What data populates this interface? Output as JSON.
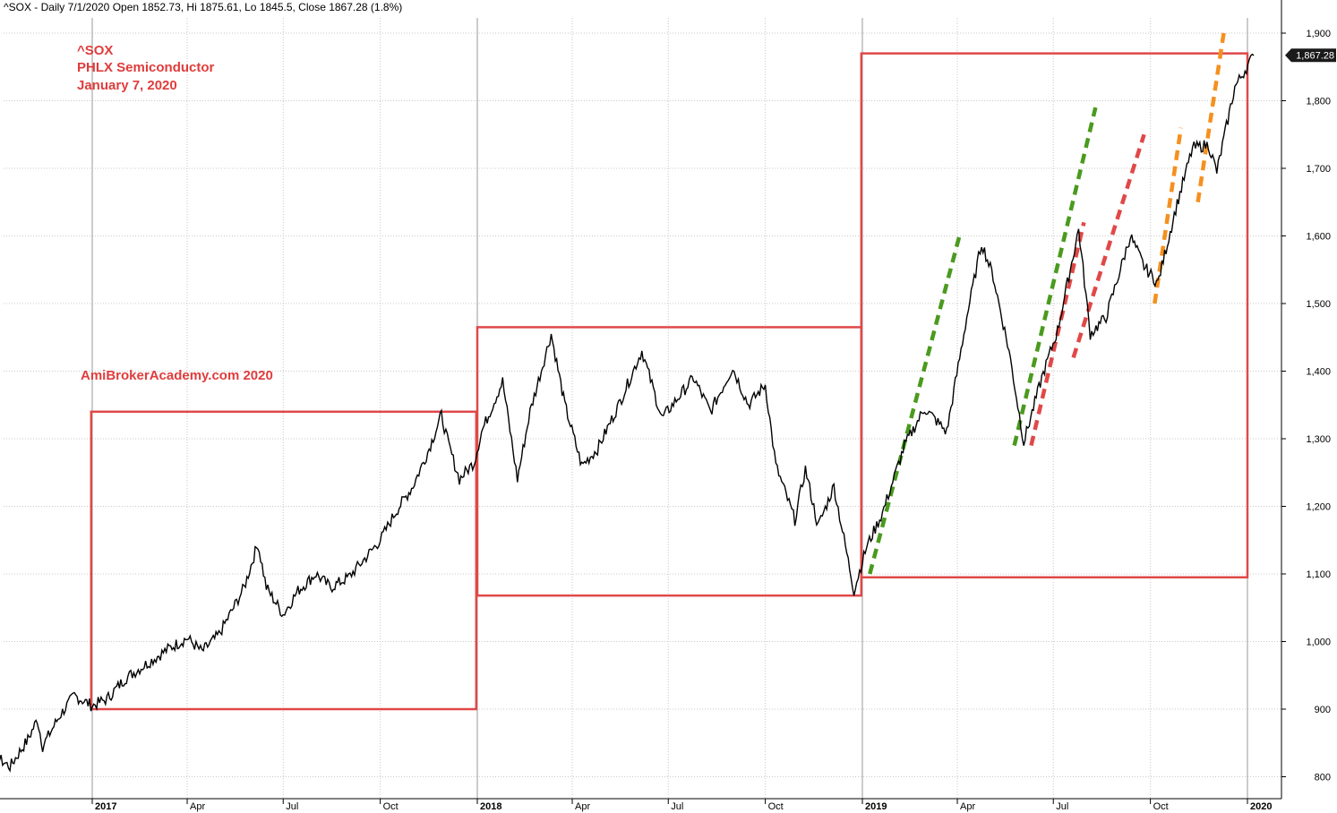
{
  "header": {
    "ohlc_text": "^SOX - Daily 7/1/2020 Open 1852.73, Hi 1875.61, Lo 1845.5, Close 1867.28 (1.8%)"
  },
  "annotations": {
    "symbol": "^SOX",
    "name": "PHLX Semiconductor",
    "date": "January 7, 2020",
    "watermark": "AmiBrokerAcademy.com 2020"
  },
  "colors": {
    "price": "#000000",
    "box": "#e04848",
    "green_trend": "#4a9a1e",
    "red_trend": "#e04848",
    "orange_trend": "#f5901e",
    "grid": "#c8c8c8",
    "price_tag_bg": "#1a1a1a"
  },
  "chart_data": {
    "type": "line",
    "title": "^SOX",
    "y_axis_position": "right",
    "ylim": [
      780,
      1910
    ],
    "yticks": [
      {
        "value": 800,
        "label": "800"
      },
      {
        "value": 900,
        "label": "900"
      },
      {
        "value": 1000,
        "label": "1,000"
      },
      {
        "value": 1100,
        "label": "1,100"
      },
      {
        "value": 1200,
        "label": "1,200"
      },
      {
        "value": 1300,
        "label": "1,300"
      },
      {
        "value": 1400,
        "label": "1,400"
      },
      {
        "value": 1500,
        "label": "1,500"
      },
      {
        "value": 1600,
        "label": "1,600"
      },
      {
        "value": 1700,
        "label": "1,700"
      },
      {
        "value": 1800,
        "label": "1,800"
      },
      {
        "value": 1900,
        "label": "1,900"
      }
    ],
    "xlim": [
      "2016-09-01",
      "2020-02-15"
    ],
    "xticks": [
      {
        "date": "2017-01-01",
        "label": "2017",
        "year": true
      },
      {
        "date": "2017-04-01",
        "label": "Apr",
        "year": false
      },
      {
        "date": "2017-07-01",
        "label": "Jul",
        "year": false
      },
      {
        "date": "2017-10-01",
        "label": "Oct",
        "year": false
      },
      {
        "date": "2018-01-01",
        "label": "2018",
        "year": true
      },
      {
        "date": "2018-04-01",
        "label": "Apr",
        "year": false
      },
      {
        "date": "2018-07-01",
        "label": "Jul",
        "year": false
      },
      {
        "date": "2018-10-01",
        "label": "Oct",
        "year": false
      },
      {
        "date": "2019-01-01",
        "label": "2019",
        "year": true
      },
      {
        "date": "2019-04-01",
        "label": "Apr",
        "year": false
      },
      {
        "date": "2019-07-01",
        "label": "Jul",
        "year": false
      },
      {
        "date": "2019-10-01",
        "label": "Oct",
        "year": false
      },
      {
        "date": "2020-01-01",
        "label": "2020",
        "year": true
      }
    ],
    "last_value": 1867.28,
    "last_value_label": "1,867.28",
    "series": [
      {
        "points": [
          [
            "2016-09-01",
            820
          ],
          [
            "2016-09-15",
            805
          ],
          [
            "2016-10-01",
            830
          ],
          [
            "2016-10-15",
            815
          ],
          [
            "2016-11-01",
            855
          ],
          [
            "2016-11-10",
            885
          ],
          [
            "2016-11-15",
            845
          ],
          [
            "2016-12-01",
            890
          ],
          [
            "2016-12-15",
            920
          ],
          [
            "2017-01-01",
            905
          ],
          [
            "2017-01-15",
            915
          ],
          [
            "2017-02-01",
            945
          ],
          [
            "2017-02-15",
            960
          ],
          [
            "2017-03-01",
            975
          ],
          [
            "2017-03-15",
            990
          ],
          [
            "2017-04-01",
            1005
          ],
          [
            "2017-04-15",
            985
          ],
          [
            "2017-05-01",
            1010
          ],
          [
            "2017-05-15",
            1050
          ],
          [
            "2017-05-25",
            1080
          ],
          [
            "2017-06-07",
            1145
          ],
          [
            "2017-06-15",
            1080
          ],
          [
            "2017-07-01",
            1040
          ],
          [
            "2017-07-15",
            1075
          ],
          [
            "2017-08-01",
            1100
          ],
          [
            "2017-08-15",
            1080
          ],
          [
            "2017-09-01",
            1095
          ],
          [
            "2017-09-15",
            1120
          ],
          [
            "2017-10-01",
            1150
          ],
          [
            "2017-10-15",
            1190
          ],
          [
            "2017-11-01",
            1230
          ],
          [
            "2017-11-15",
            1280
          ],
          [
            "2017-11-28",
            1335
          ],
          [
            "2017-12-05",
            1290
          ],
          [
            "2017-12-15",
            1240
          ],
          [
            "2017-12-29",
            1265
          ],
          [
            "2018-01-05",
            1310
          ],
          [
            "2018-01-25",
            1385
          ],
          [
            "2018-02-08",
            1240
          ],
          [
            "2018-02-20",
            1340
          ],
          [
            "2018-03-12",
            1455
          ],
          [
            "2018-03-25",
            1350
          ],
          [
            "2018-04-10",
            1260
          ],
          [
            "2018-04-25",
            1285
          ],
          [
            "2018-05-15",
            1350
          ],
          [
            "2018-06-06",
            1430
          ],
          [
            "2018-06-25",
            1330
          ],
          [
            "2018-07-10",
            1360
          ],
          [
            "2018-07-25",
            1390
          ],
          [
            "2018-08-10",
            1340
          ],
          [
            "2018-08-31",
            1405
          ],
          [
            "2018-09-15",
            1350
          ],
          [
            "2018-10-01",
            1380
          ],
          [
            "2018-10-11",
            1260
          ],
          [
            "2018-10-29",
            1180
          ],
          [
            "2018-11-08",
            1255
          ],
          [
            "2018-11-20",
            1170
          ],
          [
            "2018-12-05",
            1230
          ],
          [
            "2018-12-24",
            1075
          ],
          [
            "2019-01-05",
            1140
          ],
          [
            "2019-01-20",
            1190
          ],
          [
            "2019-02-10",
            1290
          ],
          [
            "2019-03-01",
            1345
          ],
          [
            "2019-03-22",
            1310
          ],
          [
            "2019-04-10",
            1480
          ],
          [
            "2019-04-24",
            1590
          ],
          [
            "2019-05-05",
            1540
          ],
          [
            "2019-05-20",
            1430
          ],
          [
            "2019-06-03",
            1295
          ],
          [
            "2019-06-20",
            1390
          ],
          [
            "2019-07-05",
            1460
          ],
          [
            "2019-07-25",
            1610
          ],
          [
            "2019-08-05",
            1455
          ],
          [
            "2019-08-20",
            1480
          ],
          [
            "2019-09-12",
            1600
          ],
          [
            "2019-09-25",
            1555
          ],
          [
            "2019-10-08",
            1530
          ],
          [
            "2019-10-25",
            1640
          ],
          [
            "2019-11-10",
            1730
          ],
          [
            "2019-11-25",
            1735
          ],
          [
            "2019-12-03",
            1695
          ],
          [
            "2019-12-20",
            1820
          ],
          [
            "2020-01-07",
            1867
          ]
        ]
      }
    ],
    "boxes": [
      {
        "x0": "2016-12-31",
        "x1": "2017-12-31",
        "y0": 900,
        "y1": 1340
      },
      {
        "x0": "2018-01-01",
        "x1": "2018-12-31",
        "y0": 1068,
        "y1": 1465
      },
      {
        "x0": "2018-12-31",
        "x1": "2020-01-01",
        "y0": 1095,
        "y1": 1870
      }
    ],
    "trendlines": [
      {
        "color_key": "green_trend",
        "x0": "2019-01-08",
        "y0": 1100,
        "x1": "2019-04-03",
        "y1": 1600
      },
      {
        "color_key": "green_trend",
        "x0": "2019-05-25",
        "y0": 1290,
        "x1": "2019-08-10",
        "y1": 1790
      },
      {
        "color_key": "red_trend",
        "x0": "2019-06-10",
        "y0": 1290,
        "x1": "2019-07-30",
        "y1": 1620
      },
      {
        "color_key": "red_trend",
        "x0": "2019-07-20",
        "y0": 1420,
        "x1": "2019-09-25",
        "y1": 1750
      },
      {
        "color_key": "orange_trend",
        "x0": "2019-10-05",
        "y0": 1500,
        "x1": "2019-10-30",
        "y1": 1760
      },
      {
        "color_key": "orange_trend",
        "x0": "2019-11-15",
        "y0": 1650,
        "x1": "2019-12-10",
        "y1": 1905
      }
    ]
  }
}
